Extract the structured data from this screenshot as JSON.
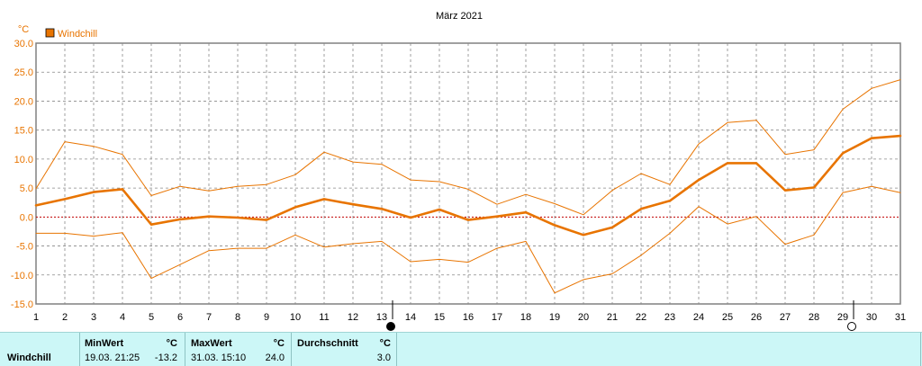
{
  "chart_data": {
    "type": "line",
    "title": "März 2021",
    "unit_label": "°C",
    "categories": [
      "1",
      "2",
      "3",
      "4",
      "5",
      "6",
      "7",
      "8",
      "9",
      "10",
      "11",
      "12",
      "13",
      "14",
      "15",
      "16",
      "17",
      "18",
      "19",
      "20",
      "21",
      "22",
      "23",
      "24",
      "25",
      "26",
      "27",
      "28",
      "29",
      "30",
      "31"
    ],
    "ylim": [
      -15,
      30
    ],
    "yticks": [
      "30.0",
      "25.0",
      "20.0",
      "15.0",
      "10.0",
      "5.0",
      "0.0",
      "-5.0",
      "-10.0",
      "-15.0"
    ],
    "grid": true,
    "legend": "top-left",
    "series": [
      {
        "name": "Windchill",
        "values": [
          2.0,
          3.1,
          4.3,
          4.8,
          -1.3,
          -0.4,
          0.1,
          -0.1,
          -0.5,
          1.7,
          3.1,
          2.2,
          1.4,
          -0.1,
          1.3,
          -0.5,
          0.1,
          0.8,
          -1.4,
          -3.1,
          -1.8,
          1.4,
          2.8,
          6.4,
          9.3,
          9.3,
          4.6,
          5.1,
          11.0,
          13.6,
          14.0
        ]
      },
      {
        "values": [
          4.9,
          13.0,
          12.2,
          10.8,
          3.7,
          5.3,
          4.5,
          5.3,
          5.6,
          7.3,
          11.2,
          9.5,
          9.1,
          6.4,
          6.1,
          4.8,
          2.2,
          3.9,
          2.3,
          0.4,
          4.6,
          7.5,
          5.6,
          12.6,
          16.3,
          16.7,
          10.8,
          11.6,
          18.6,
          22.2,
          23.7
        ]
      },
      {
        "values": [
          -2.8,
          -2.8,
          -3.3,
          -2.7,
          -10.6,
          -8.2,
          -5.8,
          -5.4,
          -5.4,
          -3.1,
          -5.2,
          -4.6,
          -4.2,
          -7.7,
          -7.3,
          -7.8,
          -5.4,
          -4.2,
          -13.1,
          -10.8,
          -9.8,
          -6.6,
          -2.8,
          1.8,
          -1.2,
          0.1,
          -4.7,
          -3.1,
          4.2,
          5.3,
          4.2
        ]
      }
    ],
    "colors": {
      "line": "#e87400",
      "zero_line": "#c00000",
      "grid": "#888888",
      "frame": "#808080",
      "table_bg": "#ccf7f7"
    },
    "moon_phases": [
      {
        "day": 13,
        "phase": "new-moon"
      },
      {
        "day": 29,
        "phase": "full-moon"
      }
    ]
  },
  "stats": {
    "row_label": "Windchill",
    "min_header": "MinWert",
    "max_header": "MaxWert",
    "avg_header": "Durchschnitt",
    "unit": "°C",
    "min_time": "19.03.  21:25",
    "min_value": "-13.2",
    "max_time": "31.03.  15:10",
    "max_value": "24.0",
    "avg_value": "3.0"
  }
}
